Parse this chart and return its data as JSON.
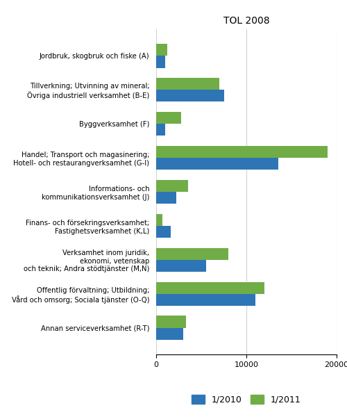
{
  "title": "TOL 2008",
  "categories": [
    "Jordbruk, skogbruk och fiske (A)",
    "Tillverkning; Utvinning av mineral;\nÖvriga industriell verksamhet (B-E)",
    "Byggverksamhet (F)",
    "Handel; Transport och magasinering;\nHotell- och restaurangverksamhet (G-I)",
    "Informations- och\nkommunikationsverksamhet (J)",
    "Finans- och försekringsverksamhet;\nFastighetsverksamhet (K,L)",
    "Verksamhet inom juridik,\nekonomi, vetenskap\noch teknik; Andra stödtjänster (M,N)",
    "Offentlig förvaltning; Utbildning;\nVård och omsorg; Sociala tjänster (O-Q)",
    "Annan serviceverksamhet (R-T)"
  ],
  "values_2010": [
    1000,
    7500,
    1000,
    13500,
    2200,
    1600,
    5500,
    11000,
    3000
  ],
  "values_2011": [
    1200,
    7000,
    2800,
    19000,
    3500,
    700,
    8000,
    12000,
    3300
  ],
  "color_2010": "#2E75B6",
  "color_2011": "#70AD47",
  "legend_labels": [
    "1/2010",
    "1/2011"
  ],
  "xlim": [
    0,
    20000
  ],
  "xticks": [
    0,
    10000,
    20000
  ],
  "bar_height": 0.35,
  "figsize": [
    5.0,
    6.0
  ],
  "dpi": 100
}
